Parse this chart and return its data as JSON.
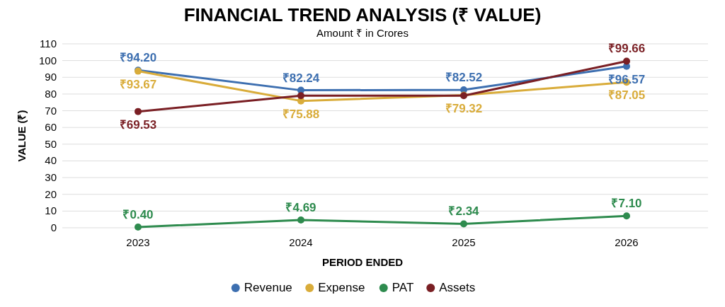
{
  "chart_data": {
    "type": "line",
    "title": "FINANCIAL TREND ANALYSIS (₹ VALUE)",
    "subtitle": "Amount ₹ in Crores",
    "xlabel": "PERIOD ENDED",
    "ylabel": "VALUE (₹)",
    "categories": [
      "2023",
      "2024",
      "2025",
      "2026"
    ],
    "series": [
      {
        "name": "Revenue",
        "color": "#3d6fb0",
        "values": [
          94.2,
          82.24,
          82.52,
          96.57
        ],
        "value_labels": [
          "₹94.20",
          "₹82.24",
          "₹82.52",
          "₹96.57"
        ]
      },
      {
        "name": "Expense",
        "color": "#d9ac3a",
        "values": [
          93.67,
          75.88,
          79.32,
          87.05
        ],
        "value_labels": [
          "₹93.67",
          "₹75.88",
          "₹79.32",
          "₹87.05"
        ]
      },
      {
        "name": "PAT",
        "color": "#2e8b4e",
        "values": [
          0.4,
          4.69,
          2.34,
          7.1
        ],
        "value_labels": [
          "₹0.40",
          "₹4.69",
          "₹2.34",
          "₹7.10"
        ]
      },
      {
        "name": "Assets",
        "color": "#7a1f24",
        "values": [
          69.53,
          79,
          79,
          99.66
        ],
        "value_labels": [
          "₹69.53",
          null,
          null,
          "₹99.66"
        ]
      }
    ],
    "ylim": [
      0,
      110
    ],
    "yticks": [
      0,
      10,
      20,
      30,
      40,
      50,
      60,
      70,
      80,
      90,
      100,
      110
    ],
    "grid": "y",
    "legend": "bottom",
    "marker": "circle",
    "line_style": "solid"
  }
}
